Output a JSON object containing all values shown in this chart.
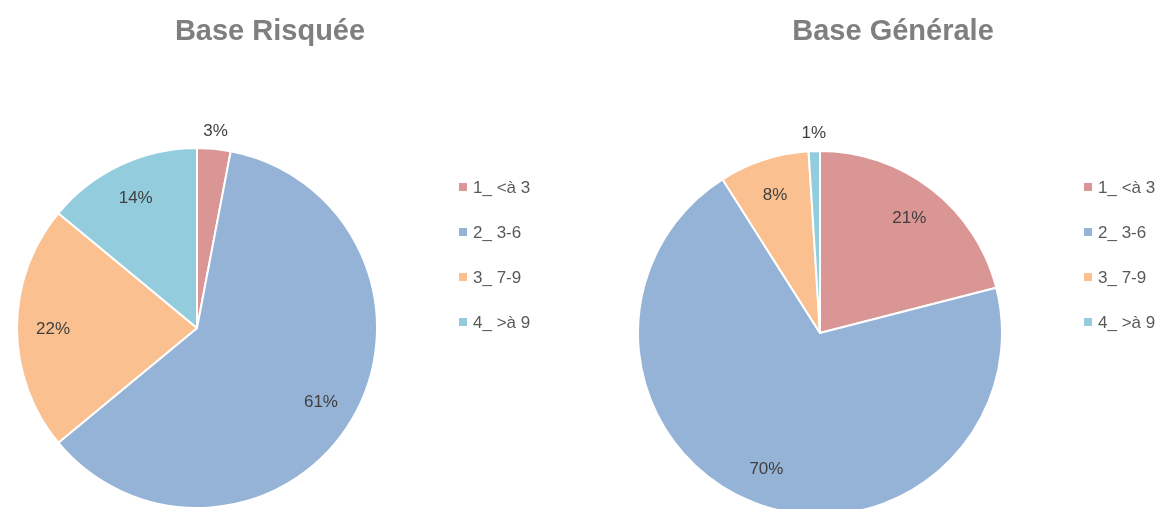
{
  "chart_data": [
    {
      "type": "pie",
      "title": "Base Risquée",
      "categories": [
        "1_ <à 3",
        "2_ 3-6",
        "3_ 7-9",
        "4_ >à 9"
      ],
      "values": [
        3,
        61,
        22,
        14
      ],
      "colors": [
        "#d99694",
        "#95b3d7",
        "#fac090",
        "#93cddd"
      ],
      "value_labels": [
        "3%",
        "61%",
        "22%",
        "14%"
      ],
      "legend": "right"
    },
    {
      "type": "pie",
      "title": "Base Générale",
      "categories": [
        "1_ <à 3",
        "2_ 3-6",
        "3_ 7-9",
        "4_ >à 9"
      ],
      "values": [
        21,
        70,
        8,
        1
      ],
      "colors": [
        "#d99694",
        "#95b3d7",
        "#fac090",
        "#93cddd"
      ],
      "value_labels": [
        "21%",
        "70%",
        "8%",
        "1%"
      ],
      "legend": "right"
    }
  ]
}
